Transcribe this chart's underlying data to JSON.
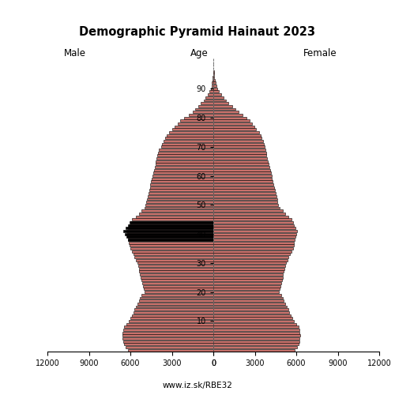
{
  "title": "Demographic Pyramid Hainaut 2023",
  "xlabel_left": "Male",
  "xlabel_right": "Female",
  "xlabel_center": "Age",
  "footer": "www.iz.sk/RBE32",
  "xlim": 12000,
  "age_min": 0,
  "age_max": 100,
  "bar_color": "#C8706A",
  "bar_color2": "#000000",
  "edge_color": "#000000",
  "male_values": [
    6200,
    6350,
    6450,
    6500,
    6550,
    6600,
    6550,
    6500,
    6450,
    6300,
    6100,
    6000,
    5900,
    5800,
    5700,
    5600,
    5500,
    5400,
    5300,
    5200,
    5000,
    5050,
    5100,
    5150,
    5200,
    5250,
    5300,
    5350,
    5400,
    5450,
    5500,
    5600,
    5700,
    5800,
    5900,
    6000,
    6050,
    6100,
    6150,
    6200,
    6250,
    6300,
    6200,
    6100,
    6000,
    5900,
    5600,
    5400,
    5200,
    5000,
    4900,
    4850,
    4800,
    4750,
    4700,
    4650,
    4600,
    4550,
    4500,
    4450,
    4400,
    4350,
    4300,
    4250,
    4200,
    4150,
    4100,
    4050,
    4000,
    3950,
    3800,
    3700,
    3600,
    3500,
    3400,
    3200,
    3000,
    2800,
    2600,
    2400,
    2100,
    1800,
    1500,
    1300,
    1100,
    900,
    700,
    550,
    400,
    280,
    200,
    140,
    95,
    65,
    42,
    26,
    16,
    9,
    5,
    2,
    1
  ],
  "female_values": [
    5900,
    6050,
    6150,
    6200,
    6250,
    6300,
    6250,
    6200,
    6150,
    6000,
    5800,
    5700,
    5600,
    5500,
    5400,
    5300,
    5200,
    5100,
    5000,
    4900,
    4750,
    4800,
    4850,
    4900,
    4950,
    5000,
    5050,
    5100,
    5150,
    5200,
    5250,
    5350,
    5450,
    5550,
    5650,
    5750,
    5800,
    5850,
    5900,
    5950,
    6000,
    6050,
    5950,
    5850,
    5750,
    5650,
    5400,
    5200,
    5000,
    4800,
    4700,
    4650,
    4600,
    4550,
    4500,
    4450,
    4400,
    4350,
    4300,
    4250,
    4200,
    4150,
    4100,
    4050,
    4000,
    3950,
    3900,
    3850,
    3800,
    3750,
    3700,
    3650,
    3600,
    3500,
    3400,
    3300,
    3100,
    2950,
    2800,
    2650,
    2400,
    2100,
    1850,
    1600,
    1350,
    1100,
    900,
    720,
    560,
    420,
    310,
    225,
    160,
    112,
    75,
    48,
    30,
    18,
    10,
    4,
    2
  ],
  "male_values2": [
    5800,
    5950,
    6100,
    6200,
    6350,
    6450,
    6500,
    6450,
    6300,
    6100,
    5800,
    5600,
    5450,
    5300,
    5150,
    5050,
    4950,
    4900,
    4800,
    4700,
    4500,
    4600,
    4700,
    4800,
    4900,
    5000,
    5100,
    5150,
    5200,
    5300,
    5400,
    5500,
    5600,
    5700,
    5800,
    5900,
    5950,
    6100,
    6200,
    6300,
    6400,
    6500,
    6350,
    6200,
    6050,
    5850,
    5500,
    5250,
    5050,
    4900,
    4800,
    4750,
    4700,
    4650,
    4600,
    4550,
    4500,
    4450,
    4400,
    4350,
    4300,
    4250,
    4200,
    4150,
    4100,
    4050,
    4000,
    3950,
    3900,
    3850,
    3700,
    3600,
    3500,
    3400,
    3300,
    3100,
    2900,
    2700,
    2500,
    2300,
    2000,
    1700,
    1450,
    1200,
    1000,
    820,
    640,
    490,
    360,
    250,
    175,
    120,
    82,
    55,
    35,
    22,
    13,
    7,
    3,
    1,
    0
  ],
  "female_values2": [
    5600,
    5750,
    5900,
    6000,
    6100,
    6200,
    6200,
    6100,
    5950,
    5800,
    5500,
    5350,
    5250,
    5100,
    5000,
    4900,
    4800,
    4700,
    4600,
    4500,
    4300,
    4400,
    4500,
    4600,
    4700,
    4800,
    4900,
    4950,
    5000,
    5100,
    5150,
    5250,
    5350,
    5450,
    5550,
    5650,
    5700,
    5750,
    5800,
    5900,
    5950,
    6000,
    5900,
    5800,
    5700,
    5600,
    5350,
    5150,
    4950,
    4750,
    4650,
    4600,
    4550,
    4500,
    4450,
    4400,
    4350,
    4300,
    4250,
    4200,
    4150,
    4100,
    4050,
    4000,
    3950,
    3900,
    3850,
    3800,
    3750,
    3700,
    3650,
    3600,
    3550,
    3450,
    3350,
    3250,
    3050,
    2900,
    2750,
    2600,
    2350,
    2050,
    1800,
    1550,
    1300,
    1060,
    870,
    690,
    530,
    400,
    290,
    210,
    150,
    104,
    70,
    44,
    27,
    16,
    9,
    3,
    1
  ]
}
